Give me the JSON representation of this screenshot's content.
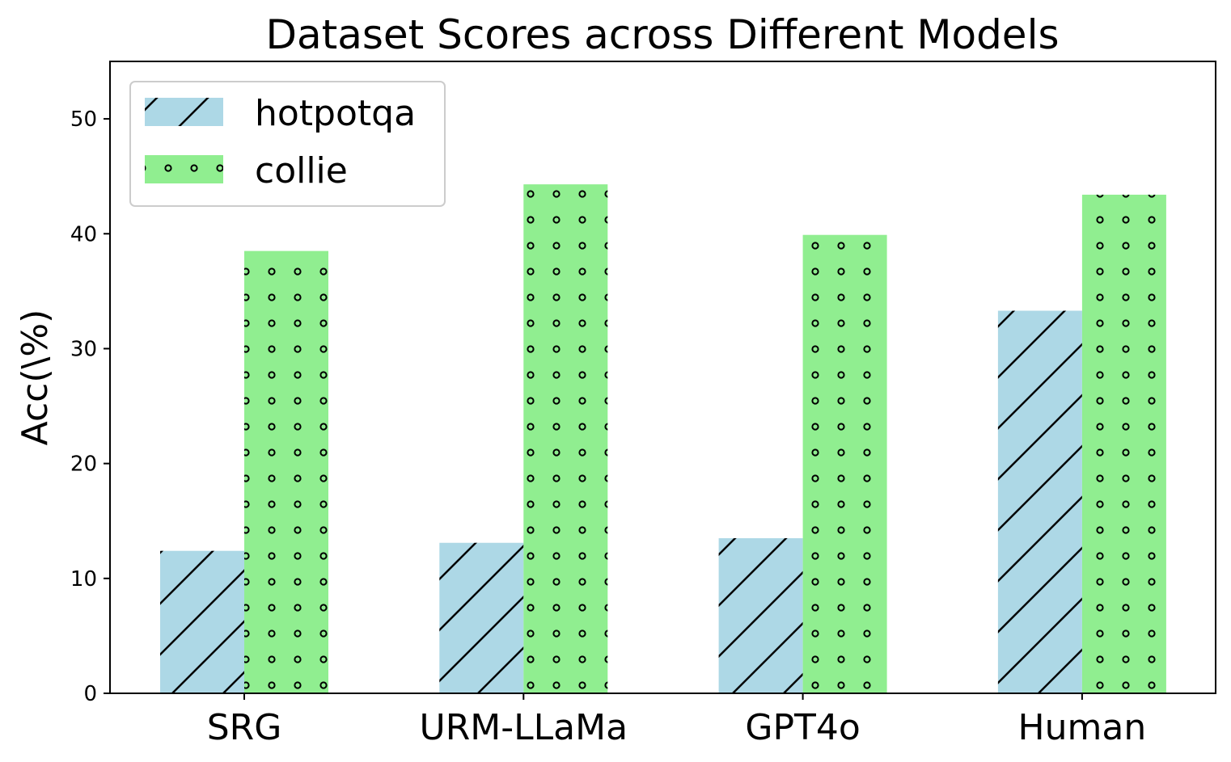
{
  "chart_data": {
    "type": "bar",
    "title": "Dataset Scores across Different Models",
    "xlabel": "",
    "ylabel": "Acc(\\%)",
    "categories": [
      "SRG",
      "URM-LLaMa",
      "GPT4o",
      "Human"
    ],
    "series": [
      {
        "name": "hotpotqa",
        "values": [
          12.4,
          13.1,
          13.5,
          33.3
        ],
        "color": "#add8e6",
        "hatch": "diagonal"
      },
      {
        "name": "collie",
        "values": [
          38.5,
          44.3,
          39.9,
          43.4
        ],
        "color": "#90ee90",
        "hatch": "dots"
      }
    ],
    "ylim": [
      0,
      55
    ],
    "yticks": [
      0,
      10,
      20,
      30,
      40,
      50
    ],
    "ytick_labels": [
      "0",
      "10",
      "20",
      "30",
      "40",
      "50"
    ],
    "grid": false,
    "legend": "top-left"
  }
}
